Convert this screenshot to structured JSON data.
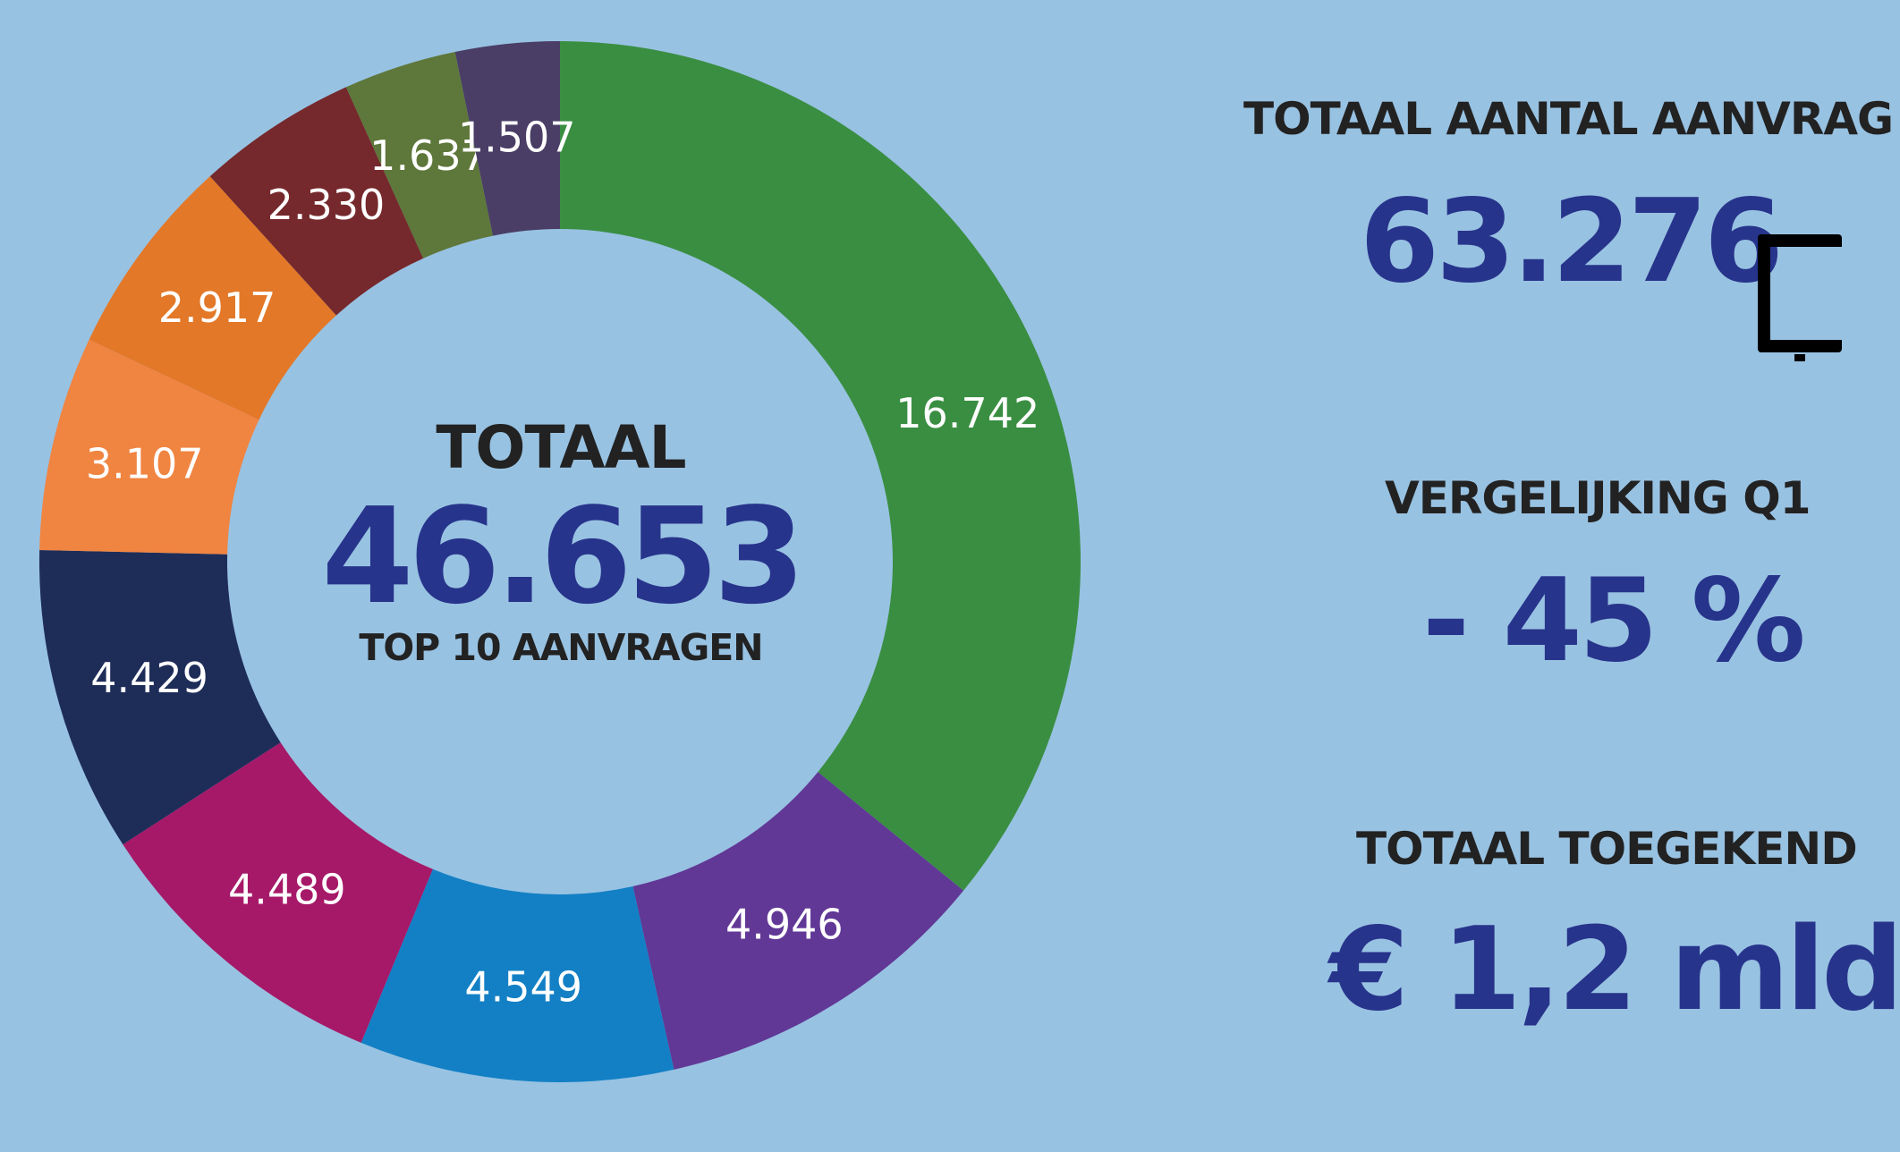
{
  "chart_data": {
    "type": "pie",
    "variant": "donut",
    "slices": [
      {
        "value": 16742,
        "label": "16.742",
        "color": "#3a8e42"
      },
      {
        "value": 4946,
        "label": "4.946",
        "color": "#613896"
      },
      {
        "value": 4549,
        "label": "4.549",
        "color": "#1380c5"
      },
      {
        "value": 4489,
        "label": "4.489",
        "color": "#a61968"
      },
      {
        "value": 4429,
        "label": "4.429",
        "color": "#1e2d58"
      },
      {
        "value": 3107,
        "label": "3.107",
        "color": "#f08441"
      },
      {
        "value": 2917,
        "label": "2.917",
        "color": "#e37828"
      },
      {
        "value": 2330,
        "label": "2.330",
        "color": "#75292c"
      },
      {
        "value": 1637,
        "label": "1.637",
        "color": "#5e773a"
      },
      {
        "value": 1507,
        "label": "1.507",
        "color": "#4a3e66"
      }
    ],
    "center": {
      "title": "TOTAAL",
      "total": "46.653",
      "subtitle": "TOP 10 AANVRAGEN"
    }
  },
  "stats": {
    "total_requests_label": "TOTAAL AANTAL AANVRAG",
    "total_requests_value": "63.276",
    "comparison_label": "VERGELIJKING Q1",
    "comparison_value": "- 45  %",
    "granted_label": "TOTAAL TOEGEKEND",
    "granted_value": "€ 1,2 mld"
  },
  "colors": {
    "background": "#98c2e2",
    "accent": "#27348b",
    "label_text": "#222222"
  },
  "icons": [
    "bracket-icon"
  ]
}
